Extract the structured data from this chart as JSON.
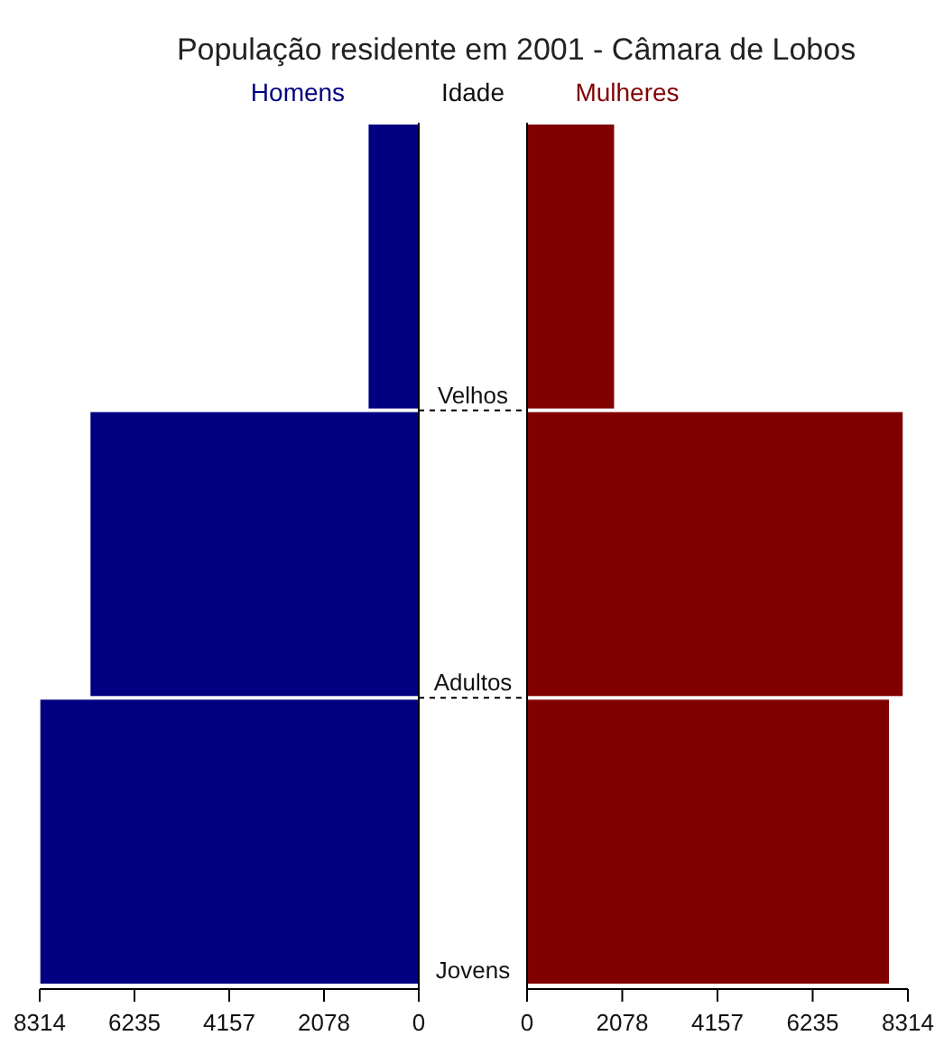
{
  "chart_data": [
    {
      "type": "bar",
      "orientation": "horizontal",
      "title": "População residente em 2001 - Câmara de Lobos",
      "ylabel": "Idade",
      "categories": [
        "Velhos",
        "Adultos",
        "Jovens"
      ],
      "series": [
        {
          "name": "Homens",
          "color": "#000080",
          "values": [
            1100,
            7200,
            8300
          ]
        }
      ],
      "xlim": [
        8314,
        0
      ],
      "xticks": [
        8314,
        6235,
        4157,
        2078,
        0
      ],
      "legend": "top"
    },
    {
      "type": "bar",
      "orientation": "horizontal",
      "categories": [
        null,
        null,
        null
      ],
      "series": [
        {
          "name": "Mulheres",
          "color": "#800000",
          "values": [
            1900,
            8200,
            7900
          ]
        }
      ],
      "xlim": [
        0,
        8314
      ],
      "xticks": [
        0,
        2078,
        4157,
        6235,
        8314
      ],
      "legend": "top",
      "tick_labels": "x"
    }
  ]
}
